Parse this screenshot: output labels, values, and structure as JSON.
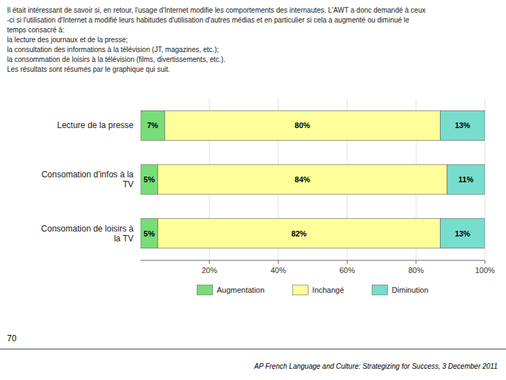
{
  "chart_data": {
    "type": "bar",
    "orientation": "horizontal",
    "stacked": true,
    "annotations": [
      "Il était intéressant de savoir si, en retour, l'usage d'Internet modifie les comportements des internautes. L'AWT a donc demandé à ceux\n-ci si l'utilisation d'Internet a modifié leurs habitudes d'utilisation d'autres médias et en particulier si cela a augmenté ou diminué le\ntemps consacré à:\nla lecture des journaux et de la presse;\nla consultation des informations à la télévision (JT, magazines, etc.);\nla consommation de loisirs à la télévision (films, divertissements, etc.).\nLes résultats sont résumés par le graphique qui suit.",
      "70",
      "AP French Language and Culture: Strategizing for Success, 3 December 2011"
    ],
    "categories": [
      "Lecture de la presse",
      "Consomation d'infos à la\nTV",
      "Consomation de loisirs à\nla TV"
    ],
    "series": [
      {
        "name": "Augmentation",
        "color": "#77DD77",
        "values": [
          7,
          5,
          5
        ],
        "value_labels": [
          "7%",
          "5%",
          "5%"
        ]
      },
      {
        "name": "Inchangé",
        "color": "#FFFF99",
        "values": [
          80,
          84,
          82
        ],
        "value_labels": [
          "80%",
          "84%",
          "82%"
        ]
      },
      {
        "name": "Diminution",
        "color": "#77DDCC",
        "values": [
          13,
          11,
          13
        ],
        "value_labels": [
          "13%",
          "11%",
          "13%"
        ]
      }
    ],
    "xlim": [
      0,
      100
    ],
    "xticks": [
      {
        "value": 20,
        "label": "20%"
      },
      {
        "value": 40,
        "label": "40%"
      },
      {
        "value": 60,
        "label": "60%"
      },
      {
        "value": 80,
        "label": "80%"
      },
      {
        "value": 100,
        "label": "100%"
      }
    ],
    "grid": true,
    "legend": "bottom",
    "data_labels": true
  }
}
